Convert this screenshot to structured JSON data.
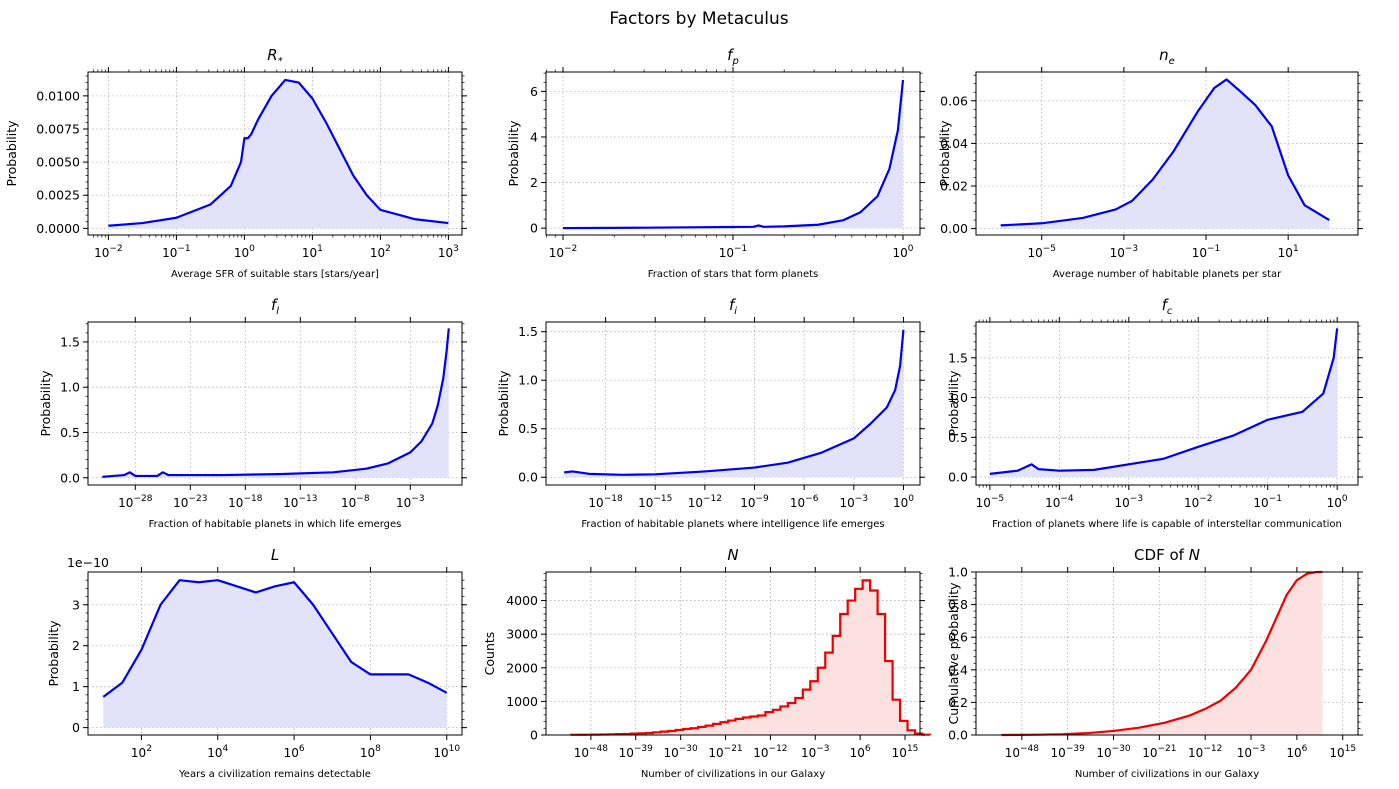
{
  "figure": {
    "suptitle": "Factors by Metaculus"
  },
  "chart_data": [
    {
      "type": "area",
      "title": "R*",
      "title_var": "R",
      "title_sub": "*",
      "xlabel": "Average SFR of suitable stars [stars/year]",
      "ylabel": "Probability",
      "xscale": "log",
      "xlim_exp": [
        -2.3,
        3.2
      ],
      "ylim": [
        -0.0005,
        0.0118
      ],
      "xticks_exp": [
        -2,
        -1,
        0,
        1,
        2,
        3
      ],
      "yticks": [
        0.0,
        0.0025,
        0.005,
        0.0075,
        0.01
      ],
      "yticklabels": [
        "0.0000",
        "0.0025",
        "0.0050",
        "0.0075",
        "0.0100"
      ],
      "grid": true,
      "color": "#0000ee",
      "fill": "#e2e2fb",
      "series": [
        {
          "x_exp": [
            -2,
            -1.5,
            -1,
            -0.5,
            -0.2,
            -0.05,
            0,
            0.05,
            0.1,
            0.2,
            0.4,
            0.6,
            0.8,
            1.0,
            1.2,
            1.4,
            1.6,
            1.8,
            2.0,
            2.5,
            3.0
          ],
          "y": [
            0.0002,
            0.0004,
            0.0008,
            0.0018,
            0.0032,
            0.005,
            0.0068,
            0.0068,
            0.0071,
            0.0082,
            0.01,
            0.0112,
            0.011,
            0.0098,
            0.008,
            0.006,
            0.004,
            0.0025,
            0.0014,
            0.0007,
            0.0004
          ]
        }
      ]
    },
    {
      "type": "area",
      "title": "fp",
      "title_var": "f",
      "title_sub": "p",
      "xlabel": "Fraction of stars that form planets",
      "ylabel": "Probability",
      "xscale": "log",
      "xlim_exp": [
        -2.1,
        0.1
      ],
      "ylim": [
        -0.3,
        6.85
      ],
      "xticks_exp": [
        -2,
        -1,
        0
      ],
      "yticks": [
        0,
        2,
        4,
        6
      ],
      "yticklabels": [
        "0",
        "2",
        "4",
        "6"
      ],
      "grid": true,
      "color": "#0000ee",
      "fill": "#e2e2fb",
      "series": [
        {
          "x_exp": [
            -2,
            -1.5,
            -1,
            -0.88,
            -0.85,
            -0.82,
            -0.7,
            -0.5,
            -0.35,
            -0.25,
            -0.15,
            -0.08,
            -0.03,
            0
          ],
          "y": [
            0.0,
            0.02,
            0.05,
            0.06,
            0.12,
            0.06,
            0.08,
            0.15,
            0.35,
            0.7,
            1.4,
            2.6,
            4.3,
            6.5
          ]
        }
      ]
    },
    {
      "type": "area",
      "title": "ne",
      "title_var": "n",
      "title_sub": "e",
      "xlabel": "Average number of habitable planets per star",
      "ylabel": "Probability",
      "xscale": "log",
      "xlim_exp": [
        -6.6,
        2.7
      ],
      "ylim": [
        -0.003,
        0.0735
      ],
      "xticks_exp": [
        -5,
        -3,
        -1,
        1
      ],
      "yticks": [
        0.0,
        0.02,
        0.04,
        0.06
      ],
      "yticklabels": [
        "0.00",
        "0.02",
        "0.04",
        "0.06"
      ],
      "grid": true,
      "color": "#0000ee",
      "fill": "#e2e2fb",
      "series": [
        {
          "x_exp": [
            -6,
            -5,
            -4,
            -3.2,
            -2.8,
            -2.3,
            -1.8,
            -1.2,
            -0.8,
            -0.5,
            -0.2,
            0.2,
            0.6,
            1.0,
            1.4,
            2.0
          ],
          "y": [
            0.0015,
            0.0025,
            0.005,
            0.009,
            0.013,
            0.023,
            0.036,
            0.055,
            0.066,
            0.07,
            0.065,
            0.058,
            0.048,
            0.025,
            0.011,
            0.004
          ]
        }
      ]
    },
    {
      "type": "area",
      "title": "fl",
      "title_var": "f",
      "title_sub": "l",
      "xlabel": "Fraction of habitable planets in which life emerges",
      "ylabel": "Probability",
      "xscale": "log",
      "xlim_exp": [
        -32.3,
        1.7
      ],
      "ylim": [
        -0.08,
        1.72
      ],
      "xticks_exp": [
        -28,
        -23,
        -18,
        -13,
        -8,
        -3
      ],
      "yticks": [
        0,
        0.5,
        1.0,
        1.5
      ],
      "yticklabels": [
        "0.0",
        "0.5",
        "1.0",
        "1.5"
      ],
      "grid": true,
      "color": "#0000ee",
      "fill": "#e2e2fb",
      "series": [
        {
          "x_exp": [
            -31,
            -30,
            -29,
            -28.5,
            -28,
            -27,
            -26,
            -25.5,
            -25,
            -24,
            -20,
            -15,
            -10,
            -7,
            -5,
            -3,
            -2,
            -1,
            -0.5,
            0,
            0.3,
            0.5
          ],
          "y": [
            0.01,
            0.02,
            0.03,
            0.06,
            0.02,
            0.02,
            0.02,
            0.06,
            0.03,
            0.03,
            0.03,
            0.04,
            0.06,
            0.1,
            0.16,
            0.28,
            0.4,
            0.6,
            0.8,
            1.1,
            1.4,
            1.65
          ]
        }
      ]
    },
    {
      "type": "area",
      "title": "fi",
      "title_var": "f",
      "title_sub": "i",
      "xlabel": "Fraction of habitable planets where intelligence life emerges",
      "ylabel": "Probability",
      "xscale": "log",
      "xlim_exp": [
        -21.6,
        1.0
      ],
      "ylim": [
        -0.08,
        1.6
      ],
      "xticks_exp": [
        -18,
        -15,
        -12,
        -9,
        -6,
        -3,
        0
      ],
      "yticks": [
        0,
        0.5,
        1.0,
        1.5
      ],
      "yticklabels": [
        "0.0",
        "0.5",
        "1.0",
        "1.5"
      ],
      "grid": true,
      "color": "#0000ee",
      "fill": "#e2e2fb",
      "series": [
        {
          "x_exp": [
            -20.5,
            -20,
            -19,
            -17,
            -15,
            -12,
            -9,
            -7,
            -5,
            -3,
            -2,
            -1,
            -0.5,
            -0.2,
            0
          ],
          "y": [
            0.05,
            0.06,
            0.035,
            0.025,
            0.03,
            0.06,
            0.1,
            0.15,
            0.25,
            0.4,
            0.55,
            0.72,
            0.9,
            1.15,
            1.52
          ]
        }
      ]
    },
    {
      "type": "area",
      "title": "fc",
      "title_var": "f",
      "title_sub": "c",
      "xlabel": "Fraction of planets where life is capable of interstellar communication",
      "ylabel": "Probability",
      "xscale": "log",
      "xlim_exp": [
        -5.2,
        0.3
      ],
      "ylim": [
        -0.1,
        1.95
      ],
      "xticks_exp": [
        -5,
        -4,
        -3,
        -2,
        -1,
        0
      ],
      "yticks": [
        0,
        0.5,
        1.0,
        1.5
      ],
      "yticklabels": [
        "0.0",
        "0.5",
        "1.0",
        "1.5"
      ],
      "grid": true,
      "color": "#0000ee",
      "fill": "#e2e2fb",
      "series": [
        {
          "x_exp": [
            -5,
            -4.6,
            -4.45,
            -4.4,
            -4.3,
            -4.0,
            -3.5,
            -3.0,
            -2.5,
            -2.0,
            -1.5,
            -1.0,
            -0.5,
            -0.2,
            -0.05,
            0
          ],
          "y": [
            0.04,
            0.08,
            0.14,
            0.16,
            0.1,
            0.08,
            0.09,
            0.16,
            0.23,
            0.38,
            0.52,
            0.72,
            0.82,
            1.05,
            1.5,
            1.87
          ]
        }
      ]
    },
    {
      "type": "area",
      "title": "L",
      "title_var": "L",
      "title_sub": "",
      "xlabel": "Years a civilization remains detectable",
      "ylabel": "Probability",
      "offset_text": "1e−10",
      "xscale": "log",
      "xlim_exp": [
        0.6,
        10.4
      ],
      "ylim": [
        -0.18,
        3.8
      ],
      "xticks_exp": [
        2,
        4,
        6,
        8,
        10
      ],
      "yticks": [
        0,
        1,
        2,
        3
      ],
      "yticklabels": [
        "0",
        "1",
        "2",
        "3"
      ],
      "grid": true,
      "color": "#0000ee",
      "fill": "#e2e2fb",
      "series": [
        {
          "x_exp": [
            1,
            1.5,
            2,
            2.5,
            3,
            3.5,
            4,
            4.5,
            5,
            5.5,
            6,
            6.5,
            7,
            7.5,
            8,
            8.5,
            9,
            9.5,
            10
          ],
          "y": [
            0.75,
            1.1,
            1.9,
            3.0,
            3.6,
            3.55,
            3.6,
            3.45,
            3.3,
            3.45,
            3.55,
            3.0,
            2.3,
            1.6,
            1.3,
            1.3,
            1.3,
            1.1,
            0.85
          ]
        }
      ]
    },
    {
      "type": "histogram",
      "title": "N",
      "title_var": "N",
      "title_sub": "",
      "xlabel": "Number of civilizations in our Galaxy",
      "ylabel": "Counts",
      "xscale": "log",
      "xlim_exp": [
        -57,
        18
      ],
      "ylim": [
        0,
        4850
      ],
      "xticks_exp": [
        -48,
        -39,
        -30,
        -21,
        -12,
        -3,
        6,
        15
      ],
      "yticks": [
        0,
        1000,
        2000,
        3000,
        4000
      ],
      "yticklabels": [
        "0",
        "1000",
        "2000",
        "3000",
        "4000"
      ],
      "grid": true,
      "color": "#ee0000",
      "fill": "#fde0e0",
      "series": [
        {
          "bin_start_exp": -52,
          "bin_width_exp": 1.5,
          "counts": [
            5,
            8,
            10,
            12,
            15,
            20,
            25,
            30,
            40,
            50,
            60,
            80,
            100,
            120,
            150,
            180,
            200,
            240,
            280,
            330,
            380,
            430,
            480,
            520,
            550,
            580,
            680,
            750,
            850,
            950,
            1100,
            1350,
            1600,
            2000,
            2450,
            2950,
            3600,
            4000,
            4350,
            4600,
            4300,
            3600,
            2200,
            1050,
            420,
            140,
            40,
            10
          ]
        }
      ]
    },
    {
      "type": "line",
      "title": "CDF of N",
      "title_prefix": "CDF of ",
      "title_var": "N",
      "title_sub": "",
      "xlabel": "Number of civilizations in our Galaxy",
      "ylabel": "Cumulative probability",
      "xscale": "log",
      "xlim_exp": [
        -57,
        18
      ],
      "ylim": [
        0,
        1.0
      ],
      "xticks_exp": [
        -48,
        -39,
        -30,
        -21,
        -12,
        -3,
        6,
        15
      ],
      "yticks": [
        0,
        0.2,
        0.4,
        0.6,
        0.8,
        1.0
      ],
      "yticklabels": [
        "0.0",
        "0.2",
        "0.4",
        "0.6",
        "0.8",
        "1.0"
      ],
      "grid": true,
      "color": "#ee0000",
      "fill": "#fde0e0",
      "series": [
        {
          "x_exp": [
            -52,
            -45,
            -40,
            -35,
            -30,
            -25,
            -20,
            -15,
            -12,
            -9,
            -6,
            -3,
            0,
            2,
            4,
            6,
            8,
            10,
            11
          ],
          "y": [
            0,
            0.002,
            0.005,
            0.012,
            0.025,
            0.045,
            0.075,
            0.12,
            0.16,
            0.21,
            0.29,
            0.4,
            0.58,
            0.72,
            0.86,
            0.95,
            0.99,
            1.0,
            1.0
          ]
        }
      ]
    }
  ]
}
